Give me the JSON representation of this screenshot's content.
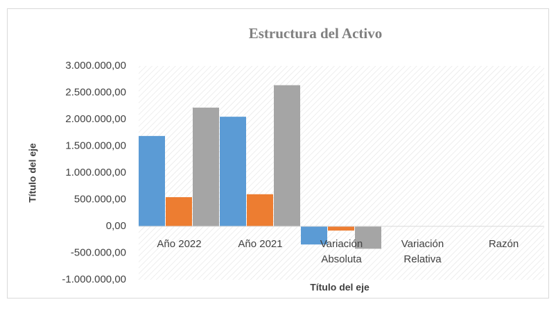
{
  "chart_data": {
    "type": "bar",
    "title": "Estructura  del Activo",
    "x_label": "Título del eje",
    "y_label": "Título del eje",
    "categories": [
      "Año 2022",
      "Año 2021",
      "Variación Absoluta",
      "Variación Relativa",
      "Razón"
    ],
    "series": [
      {
        "color": "#5b9bd5",
        "values": [
          1690000,
          2050000,
          -340000,
          0,
          0
        ]
      },
      {
        "color": "#ed7d31",
        "values": [
          545000,
          600000,
          -80000,
          0,
          0
        ]
      },
      {
        "color": "#a5a5a5",
        "values": [
          2220000,
          2640000,
          -420000,
          0,
          0
        ]
      }
    ],
    "ylim": [
      -1000000,
      3000000
    ],
    "yticks": [
      {
        "value": 3000000,
        "label": "3.000.000,00"
      },
      {
        "value": 2500000,
        "label": "2.500.000,00"
      },
      {
        "value": 2000000,
        "label": "2.000.000,00"
      },
      {
        "value": 1500000,
        "label": "1.500.000,00"
      },
      {
        "value": 1000000,
        "label": "1.000.000,00"
      },
      {
        "value": 500000,
        "label": "500.000,00"
      },
      {
        "value": 0,
        "label": "0,00"
      },
      {
        "value": -500000,
        "label": "-500.000,00"
      },
      {
        "value": -1000000,
        "label": "-1.000.000,00"
      }
    ],
    "grid": false
  }
}
